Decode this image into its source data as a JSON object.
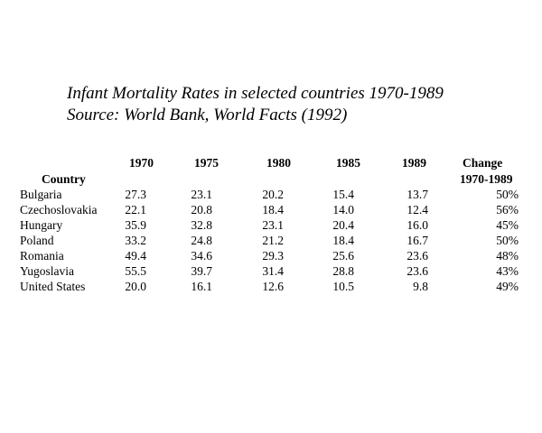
{
  "title": {
    "line1": "Infant Mortality Rates in selected countries 1970-1989",
    "line2": "Source: World Bank, World Facts (1992)"
  },
  "table": {
    "headers": {
      "country": "Country",
      "y1970": "1970",
      "y1975": "1975",
      "y1980": "1980",
      "y1985": "1985",
      "y1989": "1989",
      "change_line1": "Change",
      "change_line2": "1970-1989"
    },
    "rows": [
      {
        "country": "Bulgaria",
        "y1970": "27.3",
        "y1975": "23.1",
        "y1980": "20.2",
        "y1985": "15.4",
        "y1989": "13.7",
        "change": "50%"
      },
      {
        "country": "Czechoslovakia",
        "y1970": "22.1",
        "y1975": "20.8",
        "y1980": "18.4",
        "y1985": "14.0",
        "y1989": "12.4",
        "change": "56%"
      },
      {
        "country": "Hungary",
        "y1970": "35.9",
        "y1975": "32.8",
        "y1980": "23.1",
        "y1985": "20.4",
        "y1989": "16.0",
        "change": "45%"
      },
      {
        "country": "Poland",
        "y1970": "33.2",
        "y1975": "24.8",
        "y1980": "21.2",
        "y1985": "18.4",
        "y1989": "16.7",
        "change": "50%"
      },
      {
        "country": "Romania",
        "y1970": "49.4",
        "y1975": "34.6",
        "y1980": "29.3",
        "y1985": "25.6",
        "y1989": "23.6",
        "change": "48%"
      },
      {
        "country": "Yugoslavia",
        "y1970": "55.5",
        "y1975": "39.7",
        "y1980": "31.4",
        "y1985": "28.8",
        "y1989": "23.6",
        "change": "43%"
      },
      {
        "country": "United States",
        "y1970": "20.0",
        "y1975": "16.1",
        "y1980": "12.6",
        "y1985": "10.5",
        "y1989": "9.8",
        "change": "49%"
      }
    ]
  }
}
